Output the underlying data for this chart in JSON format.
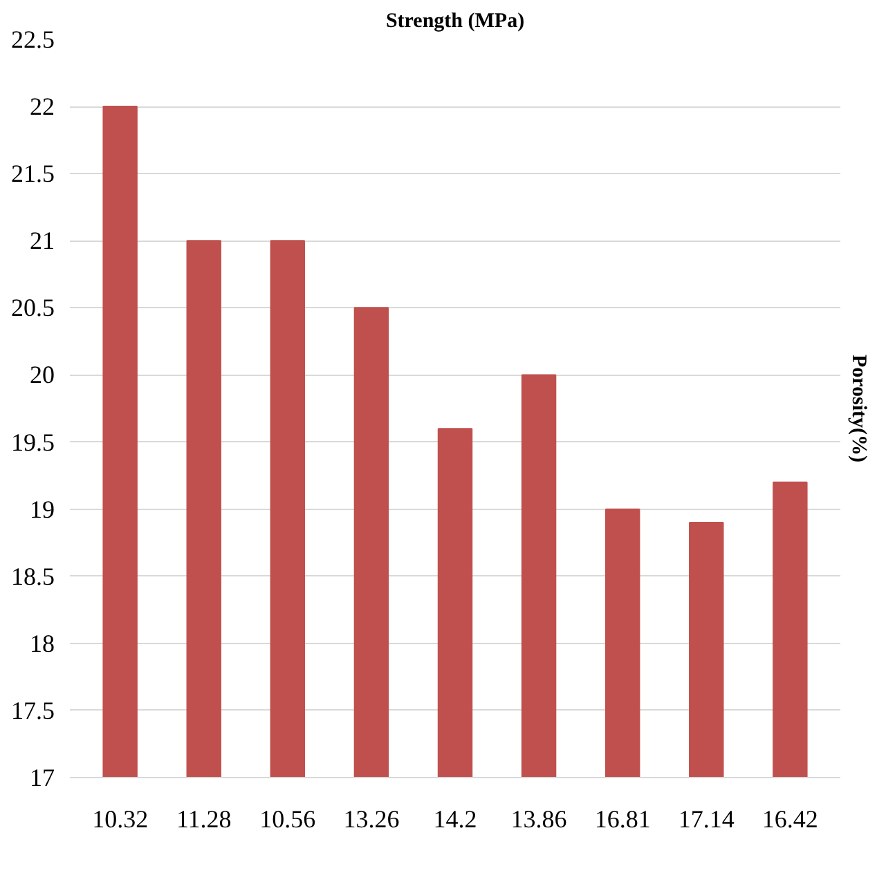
{
  "chart_data": {
    "type": "bar",
    "title": "Strength (MPa)",
    "y2label": "Porosity(%)",
    "categories": [
      "10.32",
      "11.28",
      "10.56",
      "13.26",
      "14.2",
      "13.86",
      "16.81",
      "17.14",
      "16.42"
    ],
    "values": [
      22,
      21,
      21,
      20.5,
      19.6,
      20,
      19,
      18.9,
      19.2
    ],
    "color": "#c0504d",
    "ylim": [
      17,
      22.5
    ],
    "yticks": [
      17,
      17.5,
      18,
      18.5,
      19,
      19.5,
      20,
      20.5,
      21,
      21.5,
      22,
      22.5
    ],
    "grid": "y"
  }
}
